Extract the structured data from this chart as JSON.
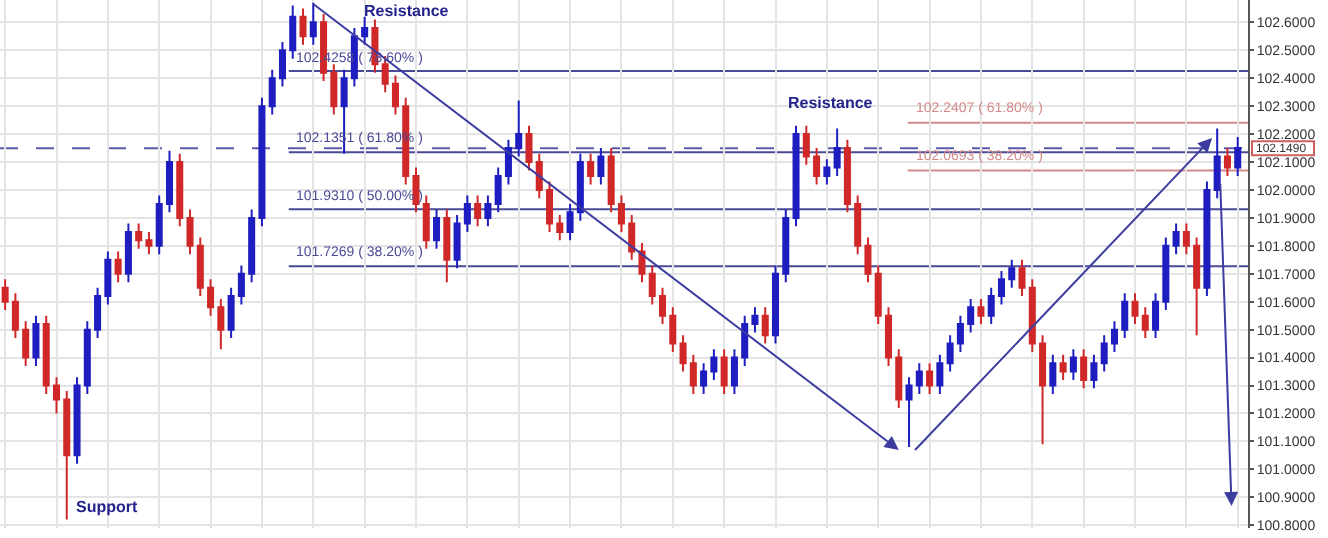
{
  "chart_data": {
    "type": "candlestick",
    "categories": [
      null,
      null,
      null,
      null,
      null,
      null,
      null,
      null,
      null,
      null,
      null,
      null,
      null,
      null,
      null,
      null,
      null,
      null,
      null,
      null,
      null,
      null,
      null,
      null,
      null,
      null,
      null,
      null,
      null,
      null,
      null,
      null,
      null,
      null,
      null,
      null,
      null,
      null,
      null,
      null,
      null,
      null,
      null,
      null,
      null,
      null,
      null,
      null,
      null,
      null,
      null,
      null,
      null,
      null,
      null,
      null,
      null,
      null,
      null,
      null,
      null,
      null,
      null,
      null,
      null,
      null,
      null,
      null,
      null,
      null,
      null,
      null,
      null,
      null,
      null,
      null,
      null,
      null,
      null,
      null,
      null,
      null,
      null,
      null,
      null,
      null,
      null,
      null,
      null,
      null,
      null,
      null,
      null,
      null,
      null,
      null,
      null,
      null,
      null,
      null,
      null,
      null,
      null,
      null,
      null,
      null,
      null,
      null,
      null,
      null,
      null,
      null,
      null,
      null,
      null,
      null,
      null,
      null,
      null,
      null,
      null
    ],
    "ohlc": [
      [
        101.65,
        101.68,
        101.57,
        101.6
      ],
      [
        101.6,
        101.63,
        101.47,
        101.5
      ],
      [
        101.5,
        101.53,
        101.37,
        101.4
      ],
      [
        101.4,
        101.55,
        101.37,
        101.52
      ],
      [
        101.52,
        101.55,
        101.27,
        101.3
      ],
      [
        101.3,
        101.33,
        101.2,
        101.25
      ],
      [
        101.25,
        101.28,
        100.82,
        101.05
      ],
      [
        101.05,
        101.33,
        101.02,
        101.3
      ],
      [
        101.3,
        101.53,
        101.27,
        101.5
      ],
      [
        101.5,
        101.65,
        101.47,
        101.62
      ],
      [
        101.62,
        101.78,
        101.59,
        101.75
      ],
      [
        101.75,
        101.78,
        101.67,
        101.7
      ],
      [
        101.7,
        101.88,
        101.67,
        101.85
      ],
      [
        101.85,
        101.88,
        101.79,
        101.82
      ],
      [
        101.82,
        101.85,
        101.77,
        101.8
      ],
      [
        101.8,
        101.98,
        101.77,
        101.95
      ],
      [
        101.95,
        102.14,
        101.92,
        102.1
      ],
      [
        102.1,
        102.13,
        101.87,
        101.9
      ],
      [
        101.9,
        101.93,
        101.77,
        101.8
      ],
      [
        101.8,
        101.83,
        101.62,
        101.65
      ],
      [
        101.65,
        101.68,
        101.55,
        101.58
      ],
      [
        101.58,
        101.61,
        101.43,
        101.5
      ],
      [
        101.5,
        101.65,
        101.47,
        101.62
      ],
      [
        101.62,
        101.73,
        101.59,
        101.7
      ],
      [
        101.7,
        101.93,
        101.67,
        101.9
      ],
      [
        101.9,
        102.33,
        101.87,
        102.3
      ],
      [
        102.3,
        102.43,
        102.27,
        102.4
      ],
      [
        102.4,
        102.53,
        102.37,
        102.5
      ],
      [
        102.5,
        102.66,
        102.47,
        102.62
      ],
      [
        102.62,
        102.65,
        102.52,
        102.55
      ],
      [
        102.55,
        102.67,
        102.52,
        102.6
      ],
      [
        102.6,
        102.63,
        102.39,
        102.42
      ],
      [
        102.42,
        102.45,
        102.27,
        102.3
      ],
      [
        102.3,
        102.43,
        102.13,
        102.4
      ],
      [
        102.4,
        102.58,
        102.37,
        102.55
      ],
      [
        102.55,
        102.62,
        102.52,
        102.58
      ],
      [
        102.58,
        102.61,
        102.42,
        102.45
      ],
      [
        102.45,
        102.48,
        102.35,
        102.38
      ],
      [
        102.38,
        102.41,
        102.27,
        102.3
      ],
      [
        102.3,
        102.33,
        102.02,
        102.05
      ],
      [
        102.05,
        102.08,
        101.92,
        101.95
      ],
      [
        101.95,
        101.98,
        101.79,
        101.82
      ],
      [
        101.82,
        101.93,
        101.79,
        101.9
      ],
      [
        101.9,
        101.93,
        101.67,
        101.75
      ],
      [
        101.75,
        101.91,
        101.72,
        101.88
      ],
      [
        101.88,
        101.98,
        101.85,
        101.95
      ],
      [
        101.95,
        101.98,
        101.87,
        101.9
      ],
      [
        101.9,
        101.98,
        101.87,
        101.95
      ],
      [
        101.95,
        102.08,
        101.92,
        102.05
      ],
      [
        102.05,
        102.18,
        102.02,
        102.15
      ],
      [
        102.15,
        102.32,
        102.12,
        102.2
      ],
      [
        102.2,
        102.23,
        102.07,
        102.1
      ],
      [
        102.1,
        102.13,
        101.97,
        102.0
      ],
      [
        102.0,
        102.03,
        101.85,
        101.88
      ],
      [
        101.88,
        101.91,
        101.82,
        101.85
      ],
      [
        101.85,
        101.95,
        101.82,
        101.92
      ],
      [
        101.92,
        102.13,
        101.89,
        102.1
      ],
      [
        102.1,
        102.13,
        102.02,
        102.05
      ],
      [
        102.05,
        102.15,
        102.02,
        102.12
      ],
      [
        102.12,
        102.15,
        101.92,
        101.95
      ],
      [
        101.95,
        101.98,
        101.85,
        101.88
      ],
      [
        101.88,
        101.91,
        101.75,
        101.78
      ],
      [
        101.78,
        101.81,
        101.67,
        101.7
      ],
      [
        101.7,
        101.73,
        101.59,
        101.62
      ],
      [
        101.62,
        101.65,
        101.52,
        101.55
      ],
      [
        101.55,
        101.58,
        101.42,
        101.45
      ],
      [
        101.45,
        101.48,
        101.35,
        101.38
      ],
      [
        101.38,
        101.41,
        101.27,
        101.3
      ],
      [
        101.3,
        101.38,
        101.27,
        101.35
      ],
      [
        101.35,
        101.43,
        101.32,
        101.4
      ],
      [
        101.4,
        101.43,
        101.27,
        101.3
      ],
      [
        101.3,
        101.43,
        101.27,
        101.4
      ],
      [
        101.4,
        101.55,
        101.37,
        101.52
      ],
      [
        101.52,
        101.58,
        101.49,
        101.55
      ],
      [
        101.55,
        101.58,
        101.45,
        101.48
      ],
      [
        101.48,
        101.73,
        101.45,
        101.7
      ],
      [
        101.7,
        101.93,
        101.67,
        101.9
      ],
      [
        101.9,
        102.23,
        101.87,
        102.2
      ],
      [
        102.2,
        102.23,
        102.09,
        102.12
      ],
      [
        102.12,
        102.15,
        102.02,
        102.05
      ],
      [
        102.05,
        102.11,
        102.02,
        102.08
      ],
      [
        102.08,
        102.22,
        102.05,
        102.15
      ],
      [
        102.15,
        102.18,
        101.92,
        101.95
      ],
      [
        101.95,
        101.98,
        101.77,
        101.8
      ],
      [
        101.8,
        101.83,
        101.67,
        101.7
      ],
      [
        101.7,
        101.73,
        101.52,
        101.55
      ],
      [
        101.55,
        101.58,
        101.37,
        101.4
      ],
      [
        101.4,
        101.43,
        101.22,
        101.25
      ],
      [
        101.25,
        101.33,
        101.08,
        101.3
      ],
      [
        101.3,
        101.38,
        101.27,
        101.35
      ],
      [
        101.35,
        101.38,
        101.27,
        101.3
      ],
      [
        101.3,
        101.41,
        101.27,
        101.38
      ],
      [
        101.38,
        101.48,
        101.35,
        101.45
      ],
      [
        101.45,
        101.55,
        101.42,
        101.52
      ],
      [
        101.52,
        101.61,
        101.49,
        101.58
      ],
      [
        101.58,
        101.61,
        101.52,
        101.55
      ],
      [
        101.55,
        101.65,
        101.52,
        101.62
      ],
      [
        101.62,
        101.71,
        101.59,
        101.68
      ],
      [
        101.68,
        101.75,
        101.65,
        101.72
      ],
      [
        101.72,
        101.75,
        101.62,
        101.65
      ],
      [
        101.65,
        101.68,
        101.42,
        101.45
      ],
      [
        101.45,
        101.48,
        101.09,
        101.3
      ],
      [
        101.3,
        101.41,
        101.27,
        101.38
      ],
      [
        101.38,
        101.41,
        101.32,
        101.35
      ],
      [
        101.35,
        101.43,
        101.32,
        101.4
      ],
      [
        101.4,
        101.43,
        101.29,
        101.32
      ],
      [
        101.32,
        101.41,
        101.29,
        101.38
      ],
      [
        101.38,
        101.48,
        101.35,
        101.45
      ],
      [
        101.45,
        101.53,
        101.42,
        101.5
      ],
      [
        101.5,
        101.63,
        101.47,
        101.6
      ],
      [
        101.6,
        101.63,
        101.52,
        101.55
      ],
      [
        101.55,
        101.58,
        101.47,
        101.5
      ],
      [
        101.5,
        101.63,
        101.47,
        101.6
      ],
      [
        101.6,
        101.83,
        101.57,
        101.8
      ],
      [
        101.8,
        101.88,
        101.77,
        101.85
      ],
      [
        101.85,
        101.88,
        101.77,
        101.8
      ],
      [
        101.8,
        101.83,
        101.48,
        101.65
      ],
      [
        101.65,
        102.03,
        101.62,
        102.0
      ],
      [
        102.0,
        102.22,
        101.97,
        102.12
      ],
      [
        102.12,
        102.15,
        102.05,
        102.08
      ],
      [
        102.08,
        102.19,
        102.05,
        102.15
      ]
    ],
    "ylim": [
      100.79,
      102.68
    ],
    "yticks": [
      {
        "value": 100.8,
        "label": "100.8000"
      },
      {
        "value": 100.9,
        "label": "100.9000"
      },
      {
        "value": 101.0,
        "label": "101.0000"
      },
      {
        "value": 101.1,
        "label": "101.1000"
      },
      {
        "value": 101.2,
        "label": "101.2000"
      },
      {
        "value": 101.3,
        "label": "101.3000"
      },
      {
        "value": 101.4,
        "label": "101.4000"
      },
      {
        "value": 101.5,
        "label": "101.5000"
      },
      {
        "value": 101.6,
        "label": "101.6000"
      },
      {
        "value": 101.7,
        "label": "101.7000"
      },
      {
        "value": 101.8,
        "label": "101.8000"
      },
      {
        "value": 101.9,
        "label": "101.9000"
      },
      {
        "value": 102.0,
        "label": "102.0000"
      },
      {
        "value": 102.1,
        "label": "102.1000"
      },
      {
        "value": 102.2,
        "label": "102.2000"
      },
      {
        "value": 102.3,
        "label": "102.3000"
      },
      {
        "value": 102.4,
        "label": "102.4000"
      },
      {
        "value": 102.5,
        "label": "102.5000"
      },
      {
        "value": 102.6,
        "label": "102.6000"
      }
    ],
    "ref_lines": [
      {
        "axis": "y",
        "value": 102.4258,
        "label": "102.4258 ( 78.60% )",
        "color": "#4a4a96"
      },
      {
        "axis": "y",
        "value": 102.1351,
        "label": "102.1351 ( 61.80% )",
        "color": "#4a4a96"
      },
      {
        "axis": "y",
        "value": 101.931,
        "label": "101.9310 ( 50.00% )",
        "color": "#4a4a96"
      },
      {
        "axis": "y",
        "value": 101.7269,
        "label": "101.7269 ( 38.20% )",
        "color": "#4a4a96"
      },
      {
        "axis": "y",
        "value": 102.2407,
        "label": "102.2407 ( 61.80% )",
        "color": "#d48a8a"
      },
      {
        "axis": "y",
        "value": 102.0693,
        "label": "102.0693 ( 38.20% )",
        "color": "#d48a8a"
      },
      {
        "axis": "y",
        "value": 102.149,
        "label": "102.1490",
        "color": "#5a5aa8",
        "line_style": "dashed"
      }
    ],
    "annotations": [
      "Resistance",
      "Resistance",
      "Support"
    ],
    "grid": true,
    "tick_labels": "y"
  }
}
